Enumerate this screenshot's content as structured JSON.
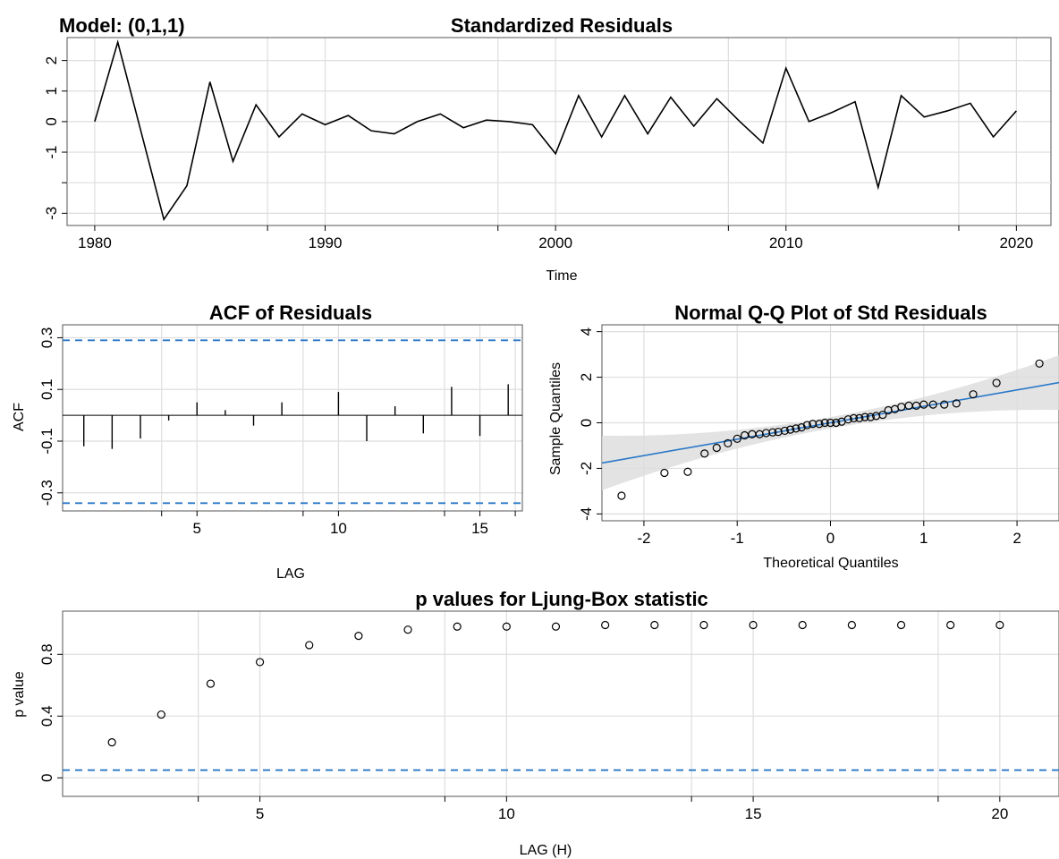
{
  "model_label": "Model: (0,1,1)",
  "chart_data": [
    {
      "type": "line",
      "title": "Standardized Residuals",
      "xlabel": "Time",
      "ylabel": "",
      "xlim": [
        1978.8,
        2021.5
      ],
      "ylim": [
        -3.4,
        2.75
      ],
      "xticks": [
        1980,
        1990,
        2000,
        2010,
        2020
      ],
      "yticks": [
        -3,
        -1,
        0,
        1,
        2
      ],
      "x": [
        1980,
        1981,
        1982,
        1983,
        1984,
        1985,
        1986,
        1987,
        1988,
        1989,
        1990,
        1991,
        1992,
        1993,
        1994,
        1995,
        1996,
        1997,
        1998,
        1999,
        2000,
        2001,
        2002,
        2003,
        2004,
        2005,
        2006,
        2007,
        2008,
        2009,
        2010,
        2011,
        2012,
        2013,
        2014,
        2015,
        2016,
        2017,
        2018,
        2019,
        2020
      ],
      "values": [
        0.0,
        2.6,
        -0.3,
        -3.2,
        -2.1,
        1.3,
        -1.3,
        0.55,
        -0.5,
        0.25,
        -0.1,
        0.2,
        -0.3,
        -0.4,
        0.0,
        0.25,
        -0.2,
        0.05,
        0.0,
        -0.1,
        -1.05,
        0.85,
        -0.5,
        0.85,
        -0.4,
        0.8,
        -0.15,
        0.75,
        0.0,
        -0.7,
        1.75,
        0.0,
        0.3,
        0.65,
        -2.15,
        0.85,
        0.15,
        0.35,
        0.6,
        -0.5,
        0.35
      ],
      "grid": true
    },
    {
      "type": "bar",
      "title": "ACF of Residuals",
      "xlabel": "LAG",
      "ylabel": "ACF",
      "xlim": [
        0.25,
        16.5
      ],
      "ylim": [
        -0.37,
        0.35
      ],
      "xticks": [
        5,
        10,
        15
      ],
      "yticks": [
        -0.3,
        -0.1,
        0.1,
        0.3
      ],
      "lags": [
        1,
        2,
        3,
        4,
        5,
        6,
        7,
        8,
        9,
        10,
        11,
        12,
        13,
        14,
        15,
        16
      ],
      "values": [
        -0.12,
        -0.13,
        -0.09,
        -0.02,
        0.05,
        0.02,
        -0.04,
        0.05,
        0.0,
        0.09,
        -0.1,
        0.035,
        -0.07,
        0.11,
        -0.08,
        0.12
      ],
      "confidence_bounds": [
        0.29,
        -0.34
      ],
      "grid": true
    },
    {
      "type": "scatter",
      "title": "Normal Q-Q Plot of Std Residuals",
      "xlabel": "Theoretical Quantiles",
      "ylabel": "Sample Quantiles",
      "xlim": [
        -2.45,
        2.45
      ],
      "ylim": [
        -4.3,
        4.3
      ],
      "xticks": [
        -2,
        -1,
        0,
        1,
        2
      ],
      "yticks": [
        -4,
        -2,
        0,
        2,
        4
      ],
      "x": [
        -2.24,
        -1.78,
        -1.53,
        -1.35,
        -1.22,
        -1.1,
        -1.0,
        -0.92,
        -0.84,
        -0.76,
        -0.69,
        -0.62,
        -0.56,
        -0.49,
        -0.43,
        -0.37,
        -0.31,
        -0.25,
        -0.19,
        -0.12,
        -0.06,
        0.0,
        0.06,
        0.12,
        0.19,
        0.25,
        0.31,
        0.37,
        0.43,
        0.49,
        0.56,
        0.62,
        0.69,
        0.76,
        0.84,
        0.92,
        1.0,
        1.1,
        1.22,
        1.35,
        1.53,
        1.78,
        2.24
      ],
      "values": [
        -3.2,
        -2.2,
        -2.15,
        -1.35,
        -1.1,
        -0.9,
        -0.7,
        -0.55,
        -0.5,
        -0.5,
        -0.45,
        -0.42,
        -0.4,
        -0.35,
        -0.3,
        -0.25,
        -0.2,
        -0.1,
        -0.05,
        -0.05,
        0.0,
        0.0,
        0.0,
        0.05,
        0.15,
        0.2,
        0.2,
        0.25,
        0.25,
        0.3,
        0.35,
        0.55,
        0.6,
        0.7,
        0.75,
        0.75,
        0.8,
        0.8,
        0.8,
        0.85,
        1.25,
        1.75,
        2.6
      ],
      "reference_line": {
        "intercept": 0.0,
        "slope": 0.72
      },
      "band_halfwidth": {
        "at_zero": 0.25,
        "at_extremes": 1.2
      },
      "grid": true
    },
    {
      "type": "scatter",
      "title": "p values for Ljung-Box statistic",
      "xlabel": "LAG (H)",
      "ylabel": "p value",
      "xlim": [
        1.0,
        21.2
      ],
      "ylim": [
        -0.12,
        1.08
      ],
      "xticks": [
        5,
        10,
        15,
        20
      ],
      "yticks": [
        0.0,
        0.4,
        0.8
      ],
      "x": [
        2,
        3,
        4,
        5,
        6,
        7,
        8,
        9,
        10,
        11,
        12,
        13,
        14,
        15,
        16,
        17,
        18,
        19,
        20
      ],
      "values": [
        0.23,
        0.41,
        0.61,
        0.75,
        0.86,
        0.92,
        0.96,
        0.98,
        0.98,
        0.98,
        0.99,
        0.99,
        0.99,
        0.99,
        0.99,
        0.99,
        0.99,
        0.99,
        0.99
      ],
      "reference_level": 0.05,
      "grid": true
    }
  ]
}
